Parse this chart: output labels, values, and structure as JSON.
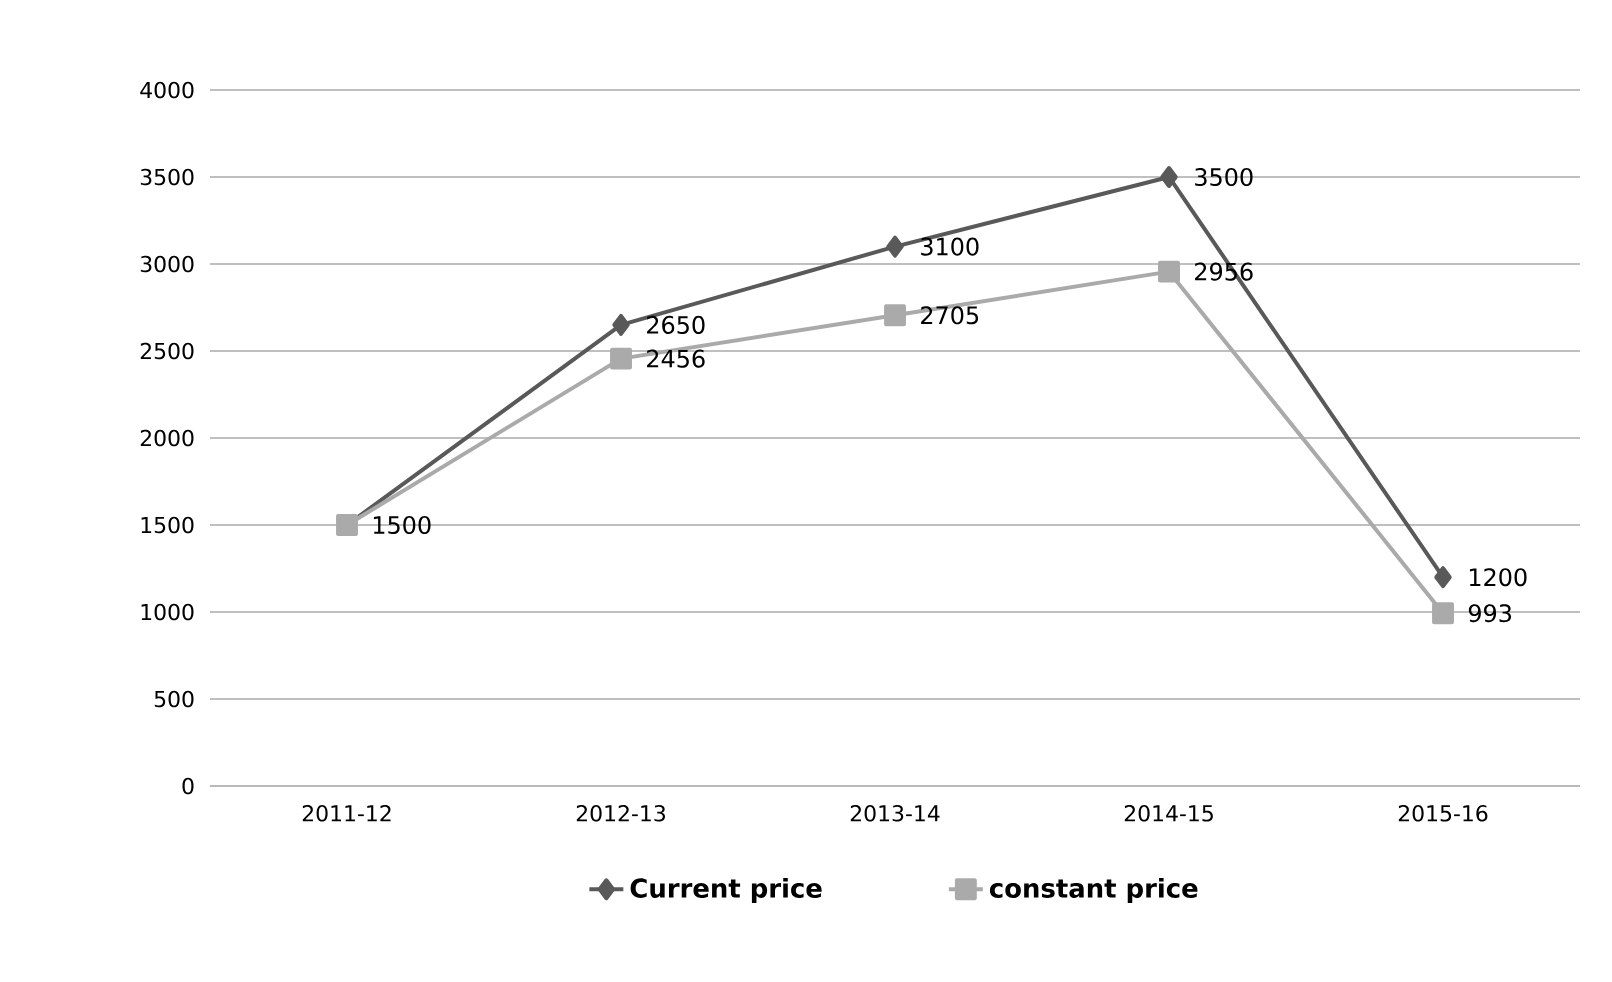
{
  "chart_data": {
    "type": "line",
    "categories": [
      "2011-12",
      "2012-13",
      "2013-14",
      "2014-15",
      "2015-16"
    ],
    "series": [
      {
        "name": "Current price",
        "color": "#595959",
        "marker": "diamond",
        "values": [
          1500,
          2650,
          3100,
          3500,
          1200
        ],
        "value_labels": [
          null,
          "2650",
          "3100",
          "3500",
          "1200"
        ]
      },
      {
        "name": "constant price",
        "color": "#aaaaaa",
        "marker": "square",
        "values": [
          1500,
          2456,
          2705,
          2956,
          993
        ],
        "value_labels": [
          "1500",
          "2456",
          "2705",
          "2956",
          "993"
        ]
      }
    ],
    "ylim": [
      0,
      4000
    ],
    "yticks": [
      0,
      500,
      1000,
      1500,
      2000,
      2500,
      3000,
      3500,
      4000
    ],
    "grid": "y",
    "legend": "bottom"
  }
}
